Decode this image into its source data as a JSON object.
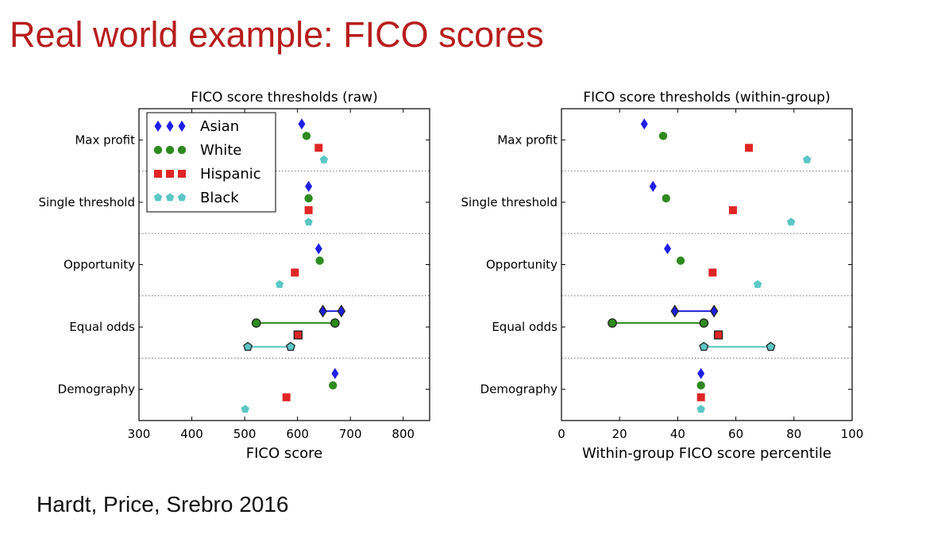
{
  "slide": {
    "title": "Real world example: FICO scores",
    "citation": "Hardt, Price, Srebro 2016"
  },
  "colors": {
    "Asian": "#1f1fe6",
    "White": "#2e8b1f",
    "Hispanic": "#e02525",
    "Black": "#5cc6c6"
  },
  "chart_data": [
    {
      "type": "scatter",
      "title": "FICO score thresholds (raw)",
      "xlabel": "FICO score",
      "ylabel": "",
      "xlim": [
        300,
        850
      ],
      "xticks": [
        300,
        400,
        500,
        600,
        700,
        800
      ],
      "categories": [
        "Max profit",
        "Single threshold",
        "Opportunity",
        "Equal odds",
        "Demography"
      ],
      "legend": {
        "position": "top-left",
        "entries": [
          "Asian",
          "White",
          "Hispanic",
          "Black"
        ]
      },
      "series": [
        {
          "name": "Asian",
          "marker": "diamond",
          "values": [
            {
              "category": "Max profit",
              "x": 608
            },
            {
              "category": "Single threshold",
              "x": 621
            },
            {
              "category": "Opportunity",
              "x": 640
            },
            {
              "category": "Equal odds",
              "x": [
                648,
                683
              ]
            },
            {
              "category": "Demography",
              "x": 671
            }
          ]
        },
        {
          "name": "White",
          "marker": "circle",
          "values": [
            {
              "category": "Max profit",
              "x": 617
            },
            {
              "category": "Single threshold",
              "x": 621
            },
            {
              "category": "Opportunity",
              "x": 642
            },
            {
              "category": "Equal odds",
              "x": [
                522,
                671
              ]
            },
            {
              "category": "Demography",
              "x": 667
            }
          ]
        },
        {
          "name": "Hispanic",
          "marker": "square",
          "values": [
            {
              "category": "Max profit",
              "x": 640
            },
            {
              "category": "Single threshold",
              "x": 621
            },
            {
              "category": "Opportunity",
              "x": 595
            },
            {
              "category": "Equal odds",
              "x": 601
            },
            {
              "category": "Demography",
              "x": 579
            }
          ]
        },
        {
          "name": "Black",
          "marker": "pentagon",
          "values": [
            {
              "category": "Max profit",
              "x": 650
            },
            {
              "category": "Single threshold",
              "x": 621
            },
            {
              "category": "Opportunity",
              "x": 566
            },
            {
              "category": "Equal odds",
              "x": [
                506,
                587
              ]
            },
            {
              "category": "Demography",
              "x": 501
            }
          ]
        }
      ]
    },
    {
      "type": "scatter",
      "title": "FICO score thresholds (within-group)",
      "xlabel": "Within-group FICO score percentile",
      "ylabel": "",
      "xlim": [
        0,
        100
      ],
      "xticks": [
        0,
        20,
        40,
        60,
        80,
        100
      ],
      "categories": [
        "Max profit",
        "Single threshold",
        "Opportunity",
        "Equal odds",
        "Demography"
      ],
      "series": [
        {
          "name": "Asian",
          "marker": "diamond",
          "values": [
            {
              "category": "Max profit",
              "x": 28.5
            },
            {
              "category": "Single threshold",
              "x": 31.5
            },
            {
              "category": "Opportunity",
              "x": 36.5
            },
            {
              "category": "Equal odds",
              "x": [
                39,
                52.5
              ]
            },
            {
              "category": "Demography",
              "x": 48
            }
          ]
        },
        {
          "name": "White",
          "marker": "circle",
          "values": [
            {
              "category": "Max profit",
              "x": 35
            },
            {
              "category": "Single threshold",
              "x": 36
            },
            {
              "category": "Opportunity",
              "x": 41
            },
            {
              "category": "Equal odds",
              "x": [
                17.5,
                49
              ]
            },
            {
              "category": "Demography",
              "x": 48
            }
          ]
        },
        {
          "name": "Hispanic",
          "marker": "square",
          "values": [
            {
              "category": "Max profit",
              "x": 64.5
            },
            {
              "category": "Single threshold",
              "x": 59
            },
            {
              "category": "Opportunity",
              "x": 52
            },
            {
              "category": "Equal odds",
              "x": 54
            },
            {
              "category": "Demography",
              "x": 48
            }
          ]
        },
        {
          "name": "Black",
          "marker": "pentagon",
          "values": [
            {
              "category": "Max profit",
              "x": 84.5
            },
            {
              "category": "Single threshold",
              "x": 79
            },
            {
              "category": "Opportunity",
              "x": 67.5
            },
            {
              "category": "Equal odds",
              "x": [
                49,
                72
              ]
            },
            {
              "category": "Demography",
              "x": 48
            }
          ]
        }
      ]
    }
  ]
}
